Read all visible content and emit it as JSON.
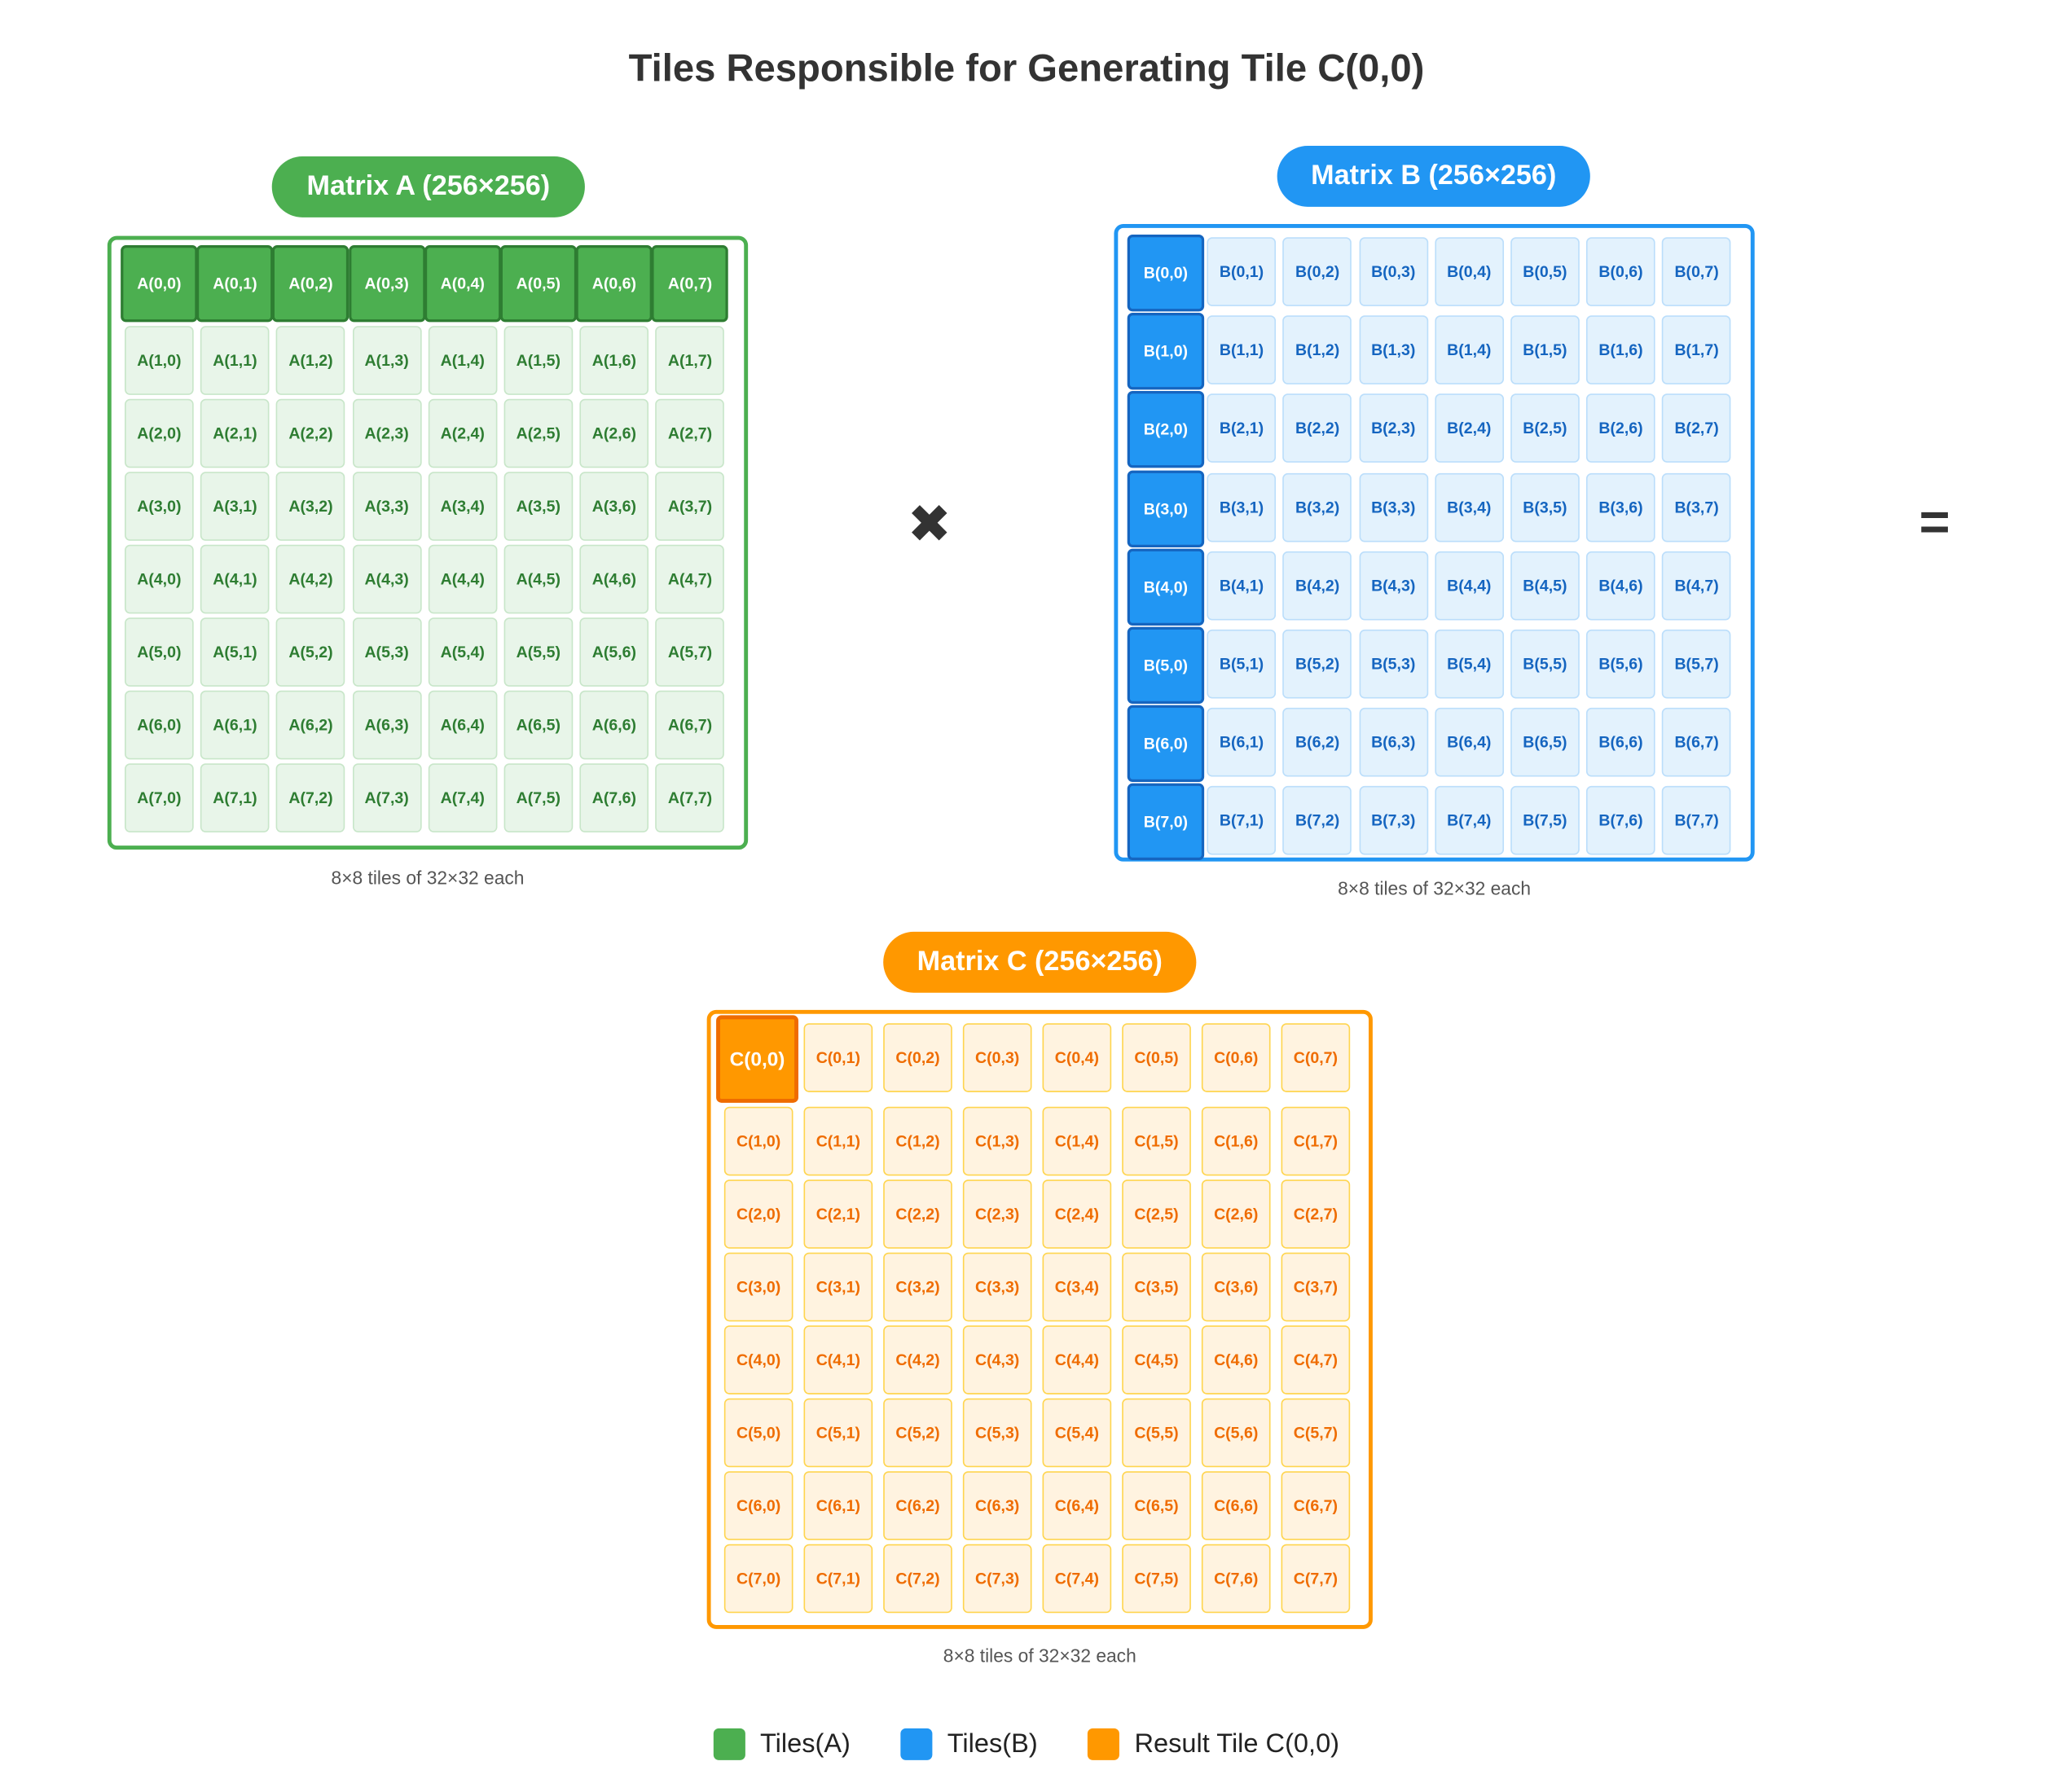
{
  "title": "Tiles Responsible for Generating Tile C(0,0)",
  "operators": {
    "multiply": "✖",
    "equals": "="
  },
  "matrices": [
    {
      "id": "A",
      "label": "Matrix A (256×256)",
      "caption": "8×8 tiles of 32×32 each",
      "rows": 8,
      "cols": 8,
      "highlight": "row",
      "highlight_index": 0,
      "colors": {
        "accent": "#4caf50",
        "highlight_fill": "#4caf50",
        "highlight_border": "#2e7d32",
        "highlight_text": "#ffffff",
        "tile_fill": "#e8f5e9",
        "tile_border": "#c8e6c9",
        "tile_text": "#2e7d32"
      }
    },
    {
      "id": "B",
      "label": "Matrix B (256×256)",
      "caption": "8×8 tiles of 32×32 each",
      "rows": 8,
      "cols": 8,
      "highlight": "column",
      "highlight_index": 0,
      "colors": {
        "accent": "#2196f3",
        "highlight_fill": "#2196f3",
        "highlight_border": "#1565c0",
        "highlight_text": "#ffffff",
        "tile_fill": "#e3f2fd",
        "tile_border": "#bbdefb",
        "tile_text": "#1565c0"
      }
    },
    {
      "id": "C",
      "label": "Matrix C (256×256)",
      "caption": "8×8 tiles of 32×32 each",
      "rows": 8,
      "cols": 8,
      "highlight": "cell",
      "highlight_index": 0,
      "colors": {
        "accent": "#ff9800",
        "highlight_fill": "#ff9800",
        "highlight_border": "#ef6c00",
        "highlight_text": "#ffffff",
        "tile_fill": "#fff3e0",
        "tile_border": "#ffd54f",
        "tile_text": "#ef6c00"
      }
    }
  ],
  "legend": [
    {
      "label": "Tiles(A)",
      "color": "#4caf50"
    },
    {
      "label": "Tiles(B)",
      "color": "#2196f3"
    },
    {
      "label": "Result Tile C(0,0)",
      "color": "#ff9800"
    }
  ]
}
